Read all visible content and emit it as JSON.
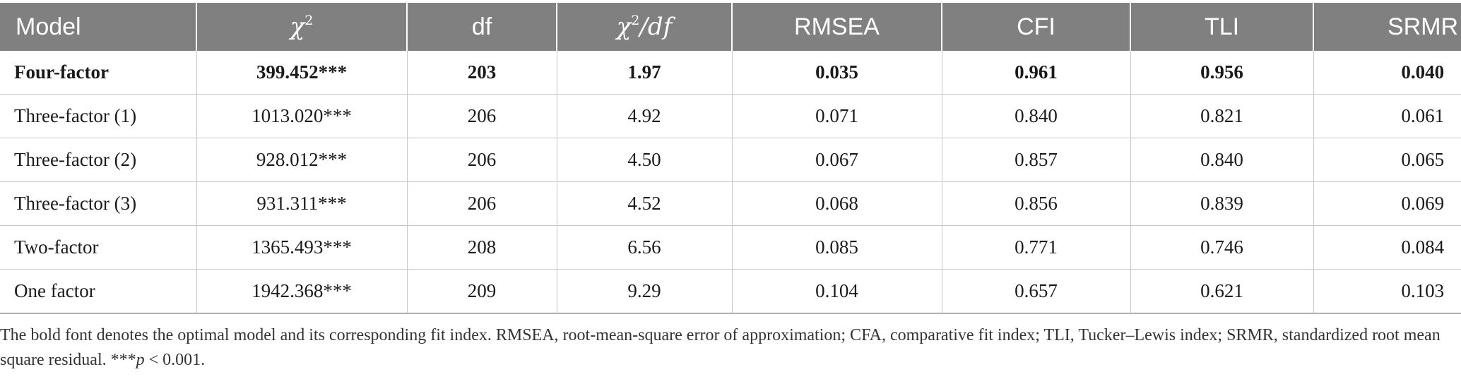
{
  "table": {
    "headers": [
      {
        "key": "model",
        "label": "Model"
      },
      {
        "key": "chi2",
        "base": "χ",
        "sup": "2"
      },
      {
        "key": "df",
        "label": "df"
      },
      {
        "key": "chi2_df",
        "base": "χ",
        "sup": "2",
        "rest": "/df"
      },
      {
        "key": "rmsea",
        "label": "RMSEA"
      },
      {
        "key": "cfi",
        "label": "CFI"
      },
      {
        "key": "tli",
        "label": "TLI"
      },
      {
        "key": "srmr",
        "label": "SRMR"
      }
    ],
    "rows": [
      {
        "model": "Four-factor",
        "chi2": "399.452***",
        "df": "203",
        "chi2_df": "1.97",
        "rmsea": "0.035",
        "cfi": "0.961",
        "tli": "0.956",
        "srmr": "0.040",
        "bold": true
      },
      {
        "model": "Three-factor (1)",
        "chi2": "1013.020***",
        "df": "206",
        "chi2_df": "4.92",
        "rmsea": "0.071",
        "cfi": "0.840",
        "tli": "0.821",
        "srmr": "0.061",
        "bold": false
      },
      {
        "model": "Three-factor (2)",
        "chi2": "928.012***",
        "df": "206",
        "chi2_df": "4.50",
        "rmsea": "0.067",
        "cfi": "0.857",
        "tli": "0.840",
        "srmr": "0.065",
        "bold": false
      },
      {
        "model": "Three-factor (3)",
        "chi2": "931.311***",
        "df": "206",
        "chi2_df": "4.52",
        "rmsea": "0.068",
        "cfi": "0.856",
        "tli": "0.839",
        "srmr": "0.069",
        "bold": false
      },
      {
        "model": "Two-factor",
        "chi2": "1365.493***",
        "df": "208",
        "chi2_df": "6.56",
        "rmsea": "0.085",
        "cfi": "0.771",
        "tli": "0.746",
        "srmr": "0.084",
        "bold": false
      },
      {
        "model": "One factor",
        "chi2": "1942.368***",
        "df": "209",
        "chi2_df": "9.29",
        "rmsea": "0.104",
        "cfi": "0.657",
        "tli": "0.621",
        "srmr": "0.103",
        "bold": false
      }
    ]
  },
  "footnote": {
    "text": "The bold font denotes the optimal model and its corresponding fit index. RMSEA, root-mean-square error of approximation; CFA, comparative fit index; TLI, Tucker–Lewis index; SRMR, standardized root mean square residual. ***",
    "p_symbol": "p",
    "p_rest": " < 0.001."
  }
}
